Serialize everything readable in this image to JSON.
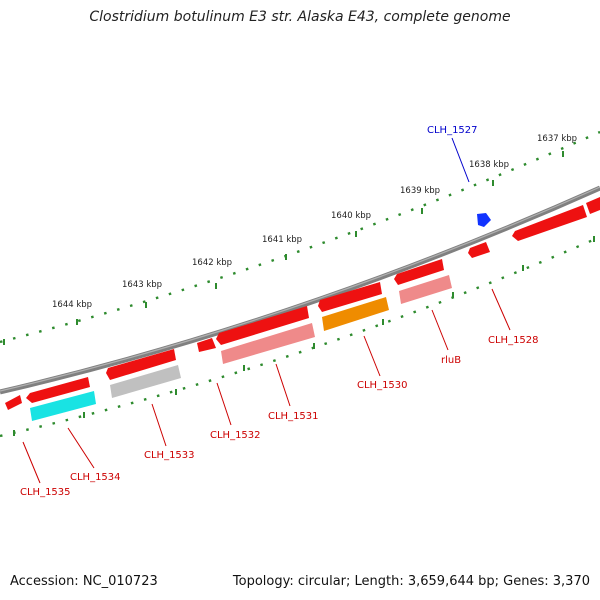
{
  "title": "Clostridium botulinum E3 str. Alaska E43, complete genome",
  "footer": {
    "accession": "Accession: NC_010723",
    "summary": "Topology: circular; Length: 3,659,644 bp; Genes: 3,370"
  },
  "colors": {
    "backbone": "#808080",
    "scale_ticks": "#2e8b2e",
    "gene_label": "#cc0000",
    "forward_gene_label": "#0000cc",
    "gene_red": "#ee1111",
    "gene_pink": "#ef8a8a",
    "gene_cyan": "#19e3e3",
    "gene_gray": "#c0c0c0",
    "gene_orange": "#ef8c00",
    "gene_blue": "#1133ff"
  },
  "scale_labels": [
    "1644 kbp",
    "1643 kbp",
    "1642 kbp",
    "1641 kbp",
    "1640 kbp",
    "1639 kbp",
    "1638 kbp",
    "1637 kbp"
  ],
  "gene_labels": [
    "CLH_1535",
    "CLH_1534",
    "CLH_1533",
    "CLH_1532",
    "CLH_1531",
    "CLH_1530",
    "rluB",
    "CLH_1528",
    "CLH_1527"
  ]
}
